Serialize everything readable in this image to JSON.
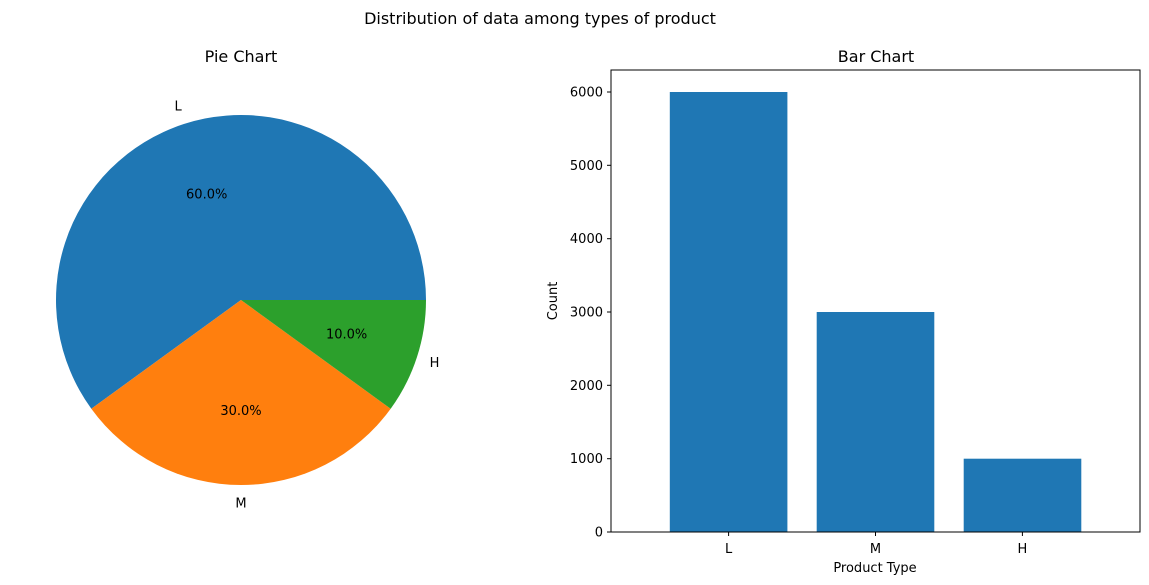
{
  "figure": {
    "title": "Distribution of data among types of product"
  },
  "chart_data": [
    {
      "type": "pie",
      "title": "Pie Chart",
      "categories": [
        "L",
        "M",
        "H"
      ],
      "values": [
        60.0,
        30.0,
        10.0
      ],
      "pct_labels": [
        "60.0%",
        "30.0%",
        "10.0%"
      ],
      "colors": [
        "#1f77b4",
        "#ff7f0e",
        "#2ca02c"
      ]
    },
    {
      "type": "bar",
      "title": "Bar Chart",
      "categories": [
        "L",
        "M",
        "H"
      ],
      "values": [
        6000,
        3000,
        1000
      ],
      "xlabel": "Product Type",
      "ylabel": "Count",
      "ylim": [
        0,
        6300
      ],
      "yticks": [
        0,
        1000,
        2000,
        3000,
        4000,
        5000,
        6000
      ],
      "ytick_labels": [
        "0",
        "1000",
        "2000",
        "3000",
        "4000",
        "5000",
        "6000"
      ],
      "color": "#1f77b4",
      "grid": false
    }
  ]
}
